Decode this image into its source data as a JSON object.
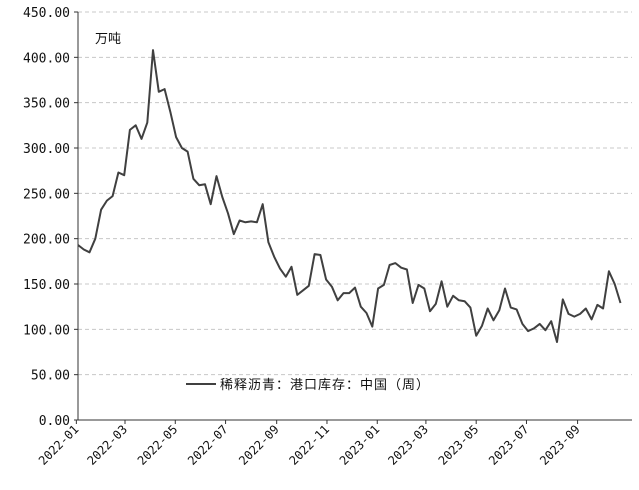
{
  "chart_data": {
    "type": "line",
    "unit_label": "万吨",
    "ylim": [
      0,
      450
    ],
    "yticks": [
      "0.00",
      "50.00",
      "100.00",
      "150.00",
      "200.00",
      "250.00",
      "300.00",
      "350.00",
      "400.00",
      "450.00"
    ],
    "x_start": "2022-01-03",
    "x_end": "2023-11-06",
    "xtick_labels": [
      "2022-01",
      "2022-03",
      "2022-05",
      "2022-07",
      "2022-09",
      "2022-11",
      "2023-01",
      "2023-03",
      "2023-05",
      "2023-07",
      "2023-09"
    ],
    "xtick_dates": [
      "2022-01-01",
      "2022-03-01",
      "2022-05-01",
      "2022-07-01",
      "2022-09-01",
      "2022-11-01",
      "2023-01-01",
      "2023-03-01",
      "2023-05-01",
      "2023-07-01",
      "2023-09-01"
    ],
    "grid": true,
    "legend_position": "bottom-center",
    "line_color": "#404040",
    "series": [
      {
        "name": "稀释沥青：港口库存：中国（周）",
        "frequency": "weekly",
        "values": [
          193,
          188,
          185,
          200,
          232,
          242,
          247,
          273,
          270,
          320,
          325,
          310,
          328,
          408,
          362,
          365,
          340,
          312,
          300,
          296,
          266,
          259,
          260,
          238,
          269,
          246,
          228,
          205,
          220,
          218,
          219,
          218,
          238,
          196,
          180,
          167,
          158,
          169,
          138,
          143,
          148,
          183,
          182,
          155,
          147,
          132,
          140,
          140,
          146,
          125,
          118,
          103,
          145,
          149,
          171,
          173,
          168,
          166,
          129,
          149,
          145,
          120,
          128,
          153,
          125,
          137,
          132,
          131,
          124,
          93,
          104,
          123,
          110,
          121,
          145,
          124,
          122,
          106,
          98,
          101,
          106,
          99,
          109,
          86,
          133,
          117,
          114,
          117,
          123,
          111,
          127,
          123,
          164,
          150,
          129
        ]
      }
    ]
  }
}
